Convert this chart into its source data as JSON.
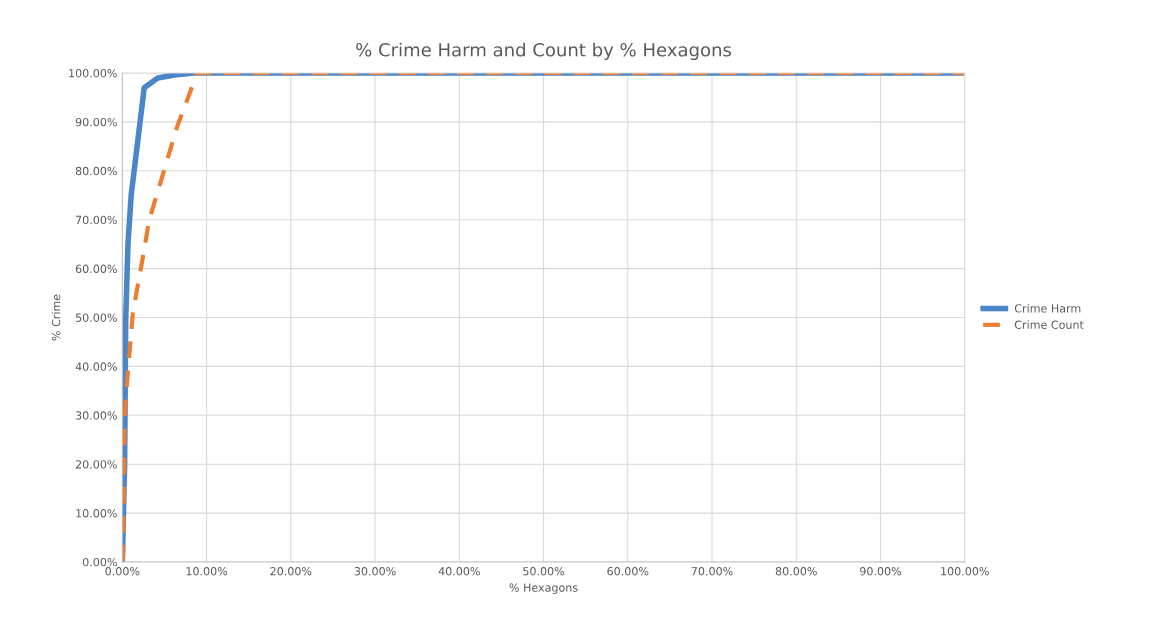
{
  "chart_data": {
    "type": "line",
    "title": "% Crime Harm and Count by % Hexagons",
    "xlabel": "% Hexagons",
    "ylabel": "% Crime",
    "series": [
      {
        "name": "Crime Harm",
        "color": "#4a86c8",
        "line_style": "solid",
        "x": [
          0,
          0.27,
          0.4,
          0.67,
          1.05,
          2.6,
          4.2,
          6.2,
          8.5,
          100
        ],
        "values": [
          0,
          20,
          49.5,
          65,
          75,
          97,
          99,
          99.6,
          100,
          100
        ]
      },
      {
        "name": "Crime Count",
        "color": "#ed7d31",
        "line_style": "dashed",
        "x": [
          0,
          0.1,
          0.27,
          0.67,
          1.25,
          2.2,
          3.2,
          4.6,
          6.5,
          8.9,
          100
        ],
        "values": [
          0,
          2,
          30,
          39,
          51,
          60,
          70,
          78,
          89,
          100,
          100
        ]
      }
    ],
    "xlim": [
      0,
      100
    ],
    "ylim": [
      0,
      100
    ],
    "xticks": [
      {
        "value": 0,
        "label": "0.00%"
      },
      {
        "value": 10,
        "label": "10.00%"
      },
      {
        "value": 20,
        "label": "20.00%"
      },
      {
        "value": 30,
        "label": "30.00%"
      },
      {
        "value": 40,
        "label": "40.00%"
      },
      {
        "value": 50,
        "label": "50.00%"
      },
      {
        "value": 60,
        "label": "60.00%"
      },
      {
        "value": 70,
        "label": "70.00%"
      },
      {
        "value": 80,
        "label": "80.00%"
      },
      {
        "value": 90,
        "label": "90.00%"
      },
      {
        "value": 100,
        "label": "100.00%"
      }
    ],
    "yticks": [
      {
        "value": 0,
        "label": "0.00%"
      },
      {
        "value": 10,
        "label": "10.00%"
      },
      {
        "value": 20,
        "label": "20.00%"
      },
      {
        "value": 30,
        "label": "30.00%"
      },
      {
        "value": 40,
        "label": "40.00%"
      },
      {
        "value": 50,
        "label": "50.00%"
      },
      {
        "value": 60,
        "label": "60.00%"
      },
      {
        "value": 70,
        "label": "70.00%"
      },
      {
        "value": 80,
        "label": "80.00%"
      },
      {
        "value": 90,
        "label": "90.00%"
      },
      {
        "value": 100,
        "label": "100.00%"
      }
    ],
    "grid": true,
    "legend": "right"
  }
}
